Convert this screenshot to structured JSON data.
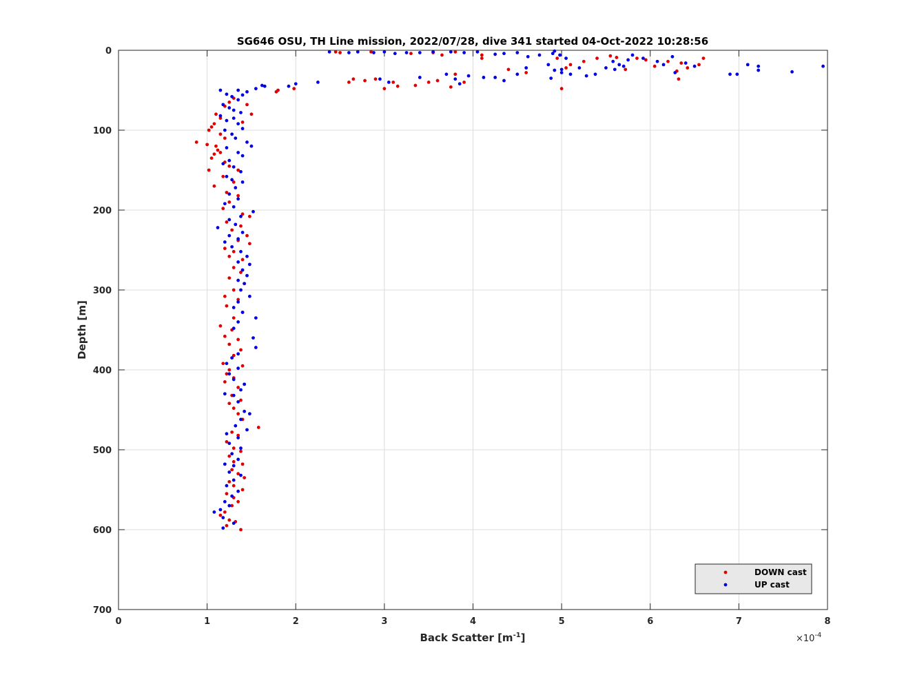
{
  "chart_data": {
    "type": "scatter",
    "title": "SG646 OSU, TH Line mission, 2022/07/28, dive 341 started 04-Oct-2022 10:28:56",
    "xlabel_main": "Back Scatter [m",
    "xlabel_sup": "-1",
    "xlabel_end": "]",
    "ylabel": "Depth [m]",
    "x_multiplier_base": "×10",
    "x_multiplier_exp": "-4",
    "xlim": [
      0,
      8
    ],
    "ylim": [
      0,
      700
    ],
    "y_reversed": true,
    "x_ticks": [
      "0",
      "1",
      "2",
      "3",
      "4",
      "5",
      "6",
      "7",
      "8"
    ],
    "y_ticks": [
      "0",
      "100",
      "200",
      "300",
      "400",
      "500",
      "600",
      "700"
    ],
    "grid": true,
    "legend_position": "bottom-right",
    "series": [
      {
        "name": "DOWN cast",
        "color": "#e00000",
        "points": [
          [
            2.45,
            2
          ],
          [
            2.5,
            3
          ],
          [
            2.85,
            2
          ],
          [
            3.3,
            4
          ],
          [
            3.55,
            3
          ],
          [
            3.65,
            6
          ],
          [
            3.8,
            2
          ],
          [
            4.1,
            6
          ],
          [
            4.1,
            10
          ],
          [
            4.4,
            24
          ],
          [
            4.6,
            28
          ],
          [
            4.95,
            10
          ],
          [
            5.05,
            22
          ],
          [
            5.1,
            18
          ],
          [
            5.25,
            14
          ],
          [
            5.4,
            10
          ],
          [
            5.55,
            7
          ],
          [
            5.62,
            9
          ],
          [
            5.72,
            24
          ],
          [
            5.85,
            10
          ],
          [
            5.95,
            12
          ],
          [
            6.05,
            20
          ],
          [
            6.2,
            14
          ],
          [
            6.3,
            26
          ],
          [
            6.35,
            16
          ],
          [
            6.42,
            22
          ],
          [
            6.55,
            18
          ],
          [
            6.6,
            10
          ],
          [
            6.32,
            36
          ],
          [
            5.0,
            48
          ],
          [
            2.6,
            40
          ],
          [
            2.65,
            36
          ],
          [
            2.78,
            38
          ],
          [
            2.9,
            36
          ],
          [
            3.0,
            48
          ],
          [
            3.1,
            40
          ],
          [
            3.15,
            45
          ],
          [
            3.35,
            44
          ],
          [
            3.5,
            40
          ],
          [
            3.6,
            38
          ],
          [
            3.75,
            46
          ],
          [
            3.8,
            30
          ],
          [
            3.9,
            40
          ],
          [
            1.8,
            50
          ],
          [
            1.98,
            48
          ],
          [
            1.78,
            52
          ],
          [
            1.3,
            60
          ],
          [
            1.25,
            65
          ],
          [
            1.2,
            70
          ],
          [
            1.45,
            68
          ],
          [
            1.5,
            80
          ],
          [
            1.1,
            80
          ],
          [
            1.15,
            85
          ],
          [
            1.4,
            90
          ],
          [
            1.08,
            92
          ],
          [
            1.05,
            96
          ],
          [
            1.02,
            100
          ],
          [
            1.15,
            105
          ],
          [
            1.2,
            110
          ],
          [
            0.88,
            115
          ],
          [
            1.0,
            118
          ],
          [
            1.1,
            120
          ],
          [
            1.12,
            125
          ],
          [
            1.08,
            130
          ],
          [
            1.15,
            128
          ],
          [
            1.05,
            135
          ],
          [
            1.2,
            140
          ],
          [
            1.25,
            145
          ],
          [
            1.35,
            150
          ],
          [
            1.02,
            150
          ],
          [
            1.18,
            158
          ],
          [
            1.3,
            165
          ],
          [
            1.08,
            170
          ],
          [
            1.22,
            178
          ],
          [
            1.35,
            182
          ],
          [
            1.25,
            190
          ],
          [
            1.18,
            198
          ],
          [
            1.4,
            205
          ],
          [
            1.48,
            208
          ],
          [
            1.22,
            215
          ],
          [
            1.38,
            220
          ],
          [
            1.28,
            225
          ],
          [
            1.45,
            232
          ],
          [
            1.35,
            238
          ],
          [
            1.48,
            242
          ],
          [
            1.2,
            248
          ],
          [
            1.3,
            252
          ],
          [
            1.25,
            258
          ],
          [
            1.4,
            262
          ],
          [
            1.3,
            272
          ],
          [
            1.38,
            278
          ],
          [
            1.25,
            285
          ],
          [
            1.42,
            292
          ],
          [
            1.3,
            300
          ],
          [
            1.2,
            308
          ],
          [
            1.35,
            312
          ],
          [
            1.22,
            320
          ],
          [
            1.4,
            328
          ],
          [
            1.3,
            335
          ],
          [
            1.15,
            345
          ],
          [
            1.28,
            350
          ],
          [
            1.2,
            358
          ],
          [
            1.35,
            362
          ],
          [
            1.25,
            368
          ],
          [
            1.38,
            375
          ],
          [
            1.3,
            382
          ],
          [
            1.18,
            392
          ],
          [
            1.4,
            395
          ],
          [
            1.25,
            400
          ],
          [
            1.22,
            405
          ],
          [
            1.3,
            410
          ],
          [
            1.2,
            415
          ],
          [
            1.35,
            422
          ],
          [
            1.28,
            432
          ],
          [
            1.38,
            438
          ],
          [
            1.25,
            442
          ],
          [
            1.3,
            448
          ],
          [
            1.35,
            455
          ],
          [
            1.4,
            462
          ],
          [
            1.58,
            472
          ],
          [
            1.28,
            478
          ],
          [
            1.35,
            482
          ],
          [
            1.22,
            490
          ],
          [
            1.3,
            498
          ],
          [
            1.38,
            502
          ],
          [
            1.25,
            508
          ],
          [
            1.3,
            515
          ],
          [
            1.4,
            518
          ],
          [
            1.28,
            525
          ],
          [
            1.35,
            530
          ],
          [
            1.42,
            535
          ],
          [
            1.25,
            540
          ],
          [
            1.3,
            545
          ],
          [
            1.4,
            550
          ],
          [
            1.22,
            555
          ],
          [
            1.3,
            560
          ],
          [
            1.35,
            565
          ],
          [
            1.28,
            570
          ],
          [
            1.2,
            578
          ],
          [
            1.15,
            582
          ],
          [
            1.25,
            588
          ],
          [
            1.32,
            590
          ],
          [
            1.22,
            595
          ],
          [
            1.38,
            600
          ]
        ]
      },
      {
        "name": "UP cast",
        "color": "#0000e0",
        "points": [
          [
            2.38,
            2
          ],
          [
            2.6,
            3
          ],
          [
            2.7,
            2
          ],
          [
            2.88,
            3
          ],
          [
            3.0,
            2
          ],
          [
            3.12,
            4
          ],
          [
            3.25,
            3
          ],
          [
            3.4,
            3
          ],
          [
            3.55,
            2
          ],
          [
            3.75,
            2
          ],
          [
            3.9,
            3
          ],
          [
            4.05,
            2
          ],
          [
            4.25,
            5
          ],
          [
            4.35,
            4
          ],
          [
            4.5,
            3
          ],
          [
            4.62,
            8
          ],
          [
            4.75,
            6
          ],
          [
            4.9,
            4
          ],
          [
            4.92,
            1
          ],
          [
            4.98,
            6
          ],
          [
            5.05,
            10
          ],
          [
            4.85,
            18
          ],
          [
            4.92,
            25
          ],
          [
            5.0,
            28
          ],
          [
            5.1,
            30
          ],
          [
            5.2,
            22
          ],
          [
            5.28,
            32
          ],
          [
            5.38,
            30
          ],
          [
            5.5,
            22
          ],
          [
            5.58,
            14
          ],
          [
            5.65,
            18
          ],
          [
            5.75,
            12
          ],
          [
            5.8,
            6
          ],
          [
            5.92,
            10
          ],
          [
            6.08,
            14
          ],
          [
            6.15,
            18
          ],
          [
            6.25,
            8
          ],
          [
            6.4,
            16
          ],
          [
            6.5,
            20
          ],
          [
            6.9,
            30
          ],
          [
            6.98,
            30
          ],
          [
            7.1,
            18
          ],
          [
            7.22,
            20
          ],
          [
            7.22,
            25
          ],
          [
            7.6,
            27
          ],
          [
            7.95,
            20
          ],
          [
            4.5,
            30
          ],
          [
            4.6,
            22
          ],
          [
            4.88,
            35
          ],
          [
            5.0,
            24
          ],
          [
            5.6,
            24
          ],
          [
            5.7,
            20
          ],
          [
            6.28,
            28
          ],
          [
            2.25,
            40
          ],
          [
            2.0,
            42
          ],
          [
            2.95,
            36
          ],
          [
            3.05,
            40
          ],
          [
            3.4,
            34
          ],
          [
            3.7,
            30
          ],
          [
            3.8,
            36
          ],
          [
            3.85,
            42
          ],
          [
            3.95,
            32
          ],
          [
            4.12,
            34
          ],
          [
            4.25,
            34
          ],
          [
            4.35,
            38
          ],
          [
            1.92,
            45
          ],
          [
            1.65,
            45
          ],
          [
            1.55,
            48
          ],
          [
            1.62,
            44
          ],
          [
            1.45,
            52
          ],
          [
            1.35,
            50
          ],
          [
            1.15,
            50
          ],
          [
            1.22,
            55
          ],
          [
            1.28,
            58
          ],
          [
            1.35,
            62
          ],
          [
            1.4,
            56
          ],
          [
            1.18,
            68
          ],
          [
            1.25,
            72
          ],
          [
            1.3,
            75
          ],
          [
            1.38,
            78
          ],
          [
            1.15,
            82
          ],
          [
            1.22,
            88
          ],
          [
            1.3,
            85
          ],
          [
            1.35,
            92
          ],
          [
            1.4,
            98
          ],
          [
            1.2,
            100
          ],
          [
            1.28,
            105
          ],
          [
            1.32,
            110
          ],
          [
            1.45,
            115
          ],
          [
            1.5,
            120
          ],
          [
            1.22,
            122
          ],
          [
            1.35,
            128
          ],
          [
            1.4,
            132
          ],
          [
            1.25,
            138
          ],
          [
            1.18,
            142
          ],
          [
            1.3,
            146
          ],
          [
            1.38,
            152
          ],
          [
            1.22,
            158
          ],
          [
            1.28,
            162
          ],
          [
            1.4,
            165
          ],
          [
            1.32,
            172
          ],
          [
            1.25,
            180
          ],
          [
            1.35,
            186
          ],
          [
            1.2,
            192
          ],
          [
            1.3,
            196
          ],
          [
            1.52,
            202
          ],
          [
            1.38,
            208
          ],
          [
            1.25,
            212
          ],
          [
            1.32,
            218
          ],
          [
            1.12,
            222
          ],
          [
            1.4,
            228
          ],
          [
            1.25,
            232
          ],
          [
            1.35,
            236
          ],
          [
            1.2,
            240
          ],
          [
            1.28,
            246
          ],
          [
            1.38,
            252
          ],
          [
            1.45,
            258
          ],
          [
            1.35,
            265
          ],
          [
            1.48,
            268
          ],
          [
            1.4,
            275
          ],
          [
            1.45,
            282
          ],
          [
            1.35,
            288
          ],
          [
            1.42,
            292
          ],
          [
            1.38,
            300
          ],
          [
            1.48,
            308
          ],
          [
            1.35,
            315
          ],
          [
            1.3,
            322
          ],
          [
            1.4,
            328
          ],
          [
            1.55,
            335
          ],
          [
            1.35,
            340
          ],
          [
            1.3,
            348
          ],
          [
            1.52,
            360
          ],
          [
            1.55,
            372
          ],
          [
            1.35,
            380
          ],
          [
            1.28,
            385
          ],
          [
            1.22,
            392
          ],
          [
            1.35,
            398
          ],
          [
            1.25,
            405
          ],
          [
            1.3,
            412
          ],
          [
            1.42,
            418
          ],
          [
            1.38,
            425
          ],
          [
            1.3,
            432
          ],
          [
            1.2,
            430
          ],
          [
            1.35,
            440
          ],
          [
            1.42,
            452
          ],
          [
            1.48,
            455
          ],
          [
            1.38,
            462
          ],
          [
            1.32,
            470
          ],
          [
            1.45,
            475
          ],
          [
            1.22,
            480
          ],
          [
            1.35,
            485
          ],
          [
            1.25,
            492
          ],
          [
            1.38,
            498
          ],
          [
            1.28,
            505
          ],
          [
            1.35,
            512
          ],
          [
            1.2,
            518
          ],
          [
            1.3,
            520
          ],
          [
            1.25,
            528
          ],
          [
            1.38,
            532
          ],
          [
            1.3,
            538
          ],
          [
            1.22,
            545
          ],
          [
            1.35,
            552
          ],
          [
            1.28,
            558
          ],
          [
            1.2,
            565
          ],
          [
            1.25,
            570
          ],
          [
            1.15,
            575
          ],
          [
            1.08,
            578
          ],
          [
            1.18,
            585
          ],
          [
            1.3,
            592
          ],
          [
            1.18,
            598
          ]
        ]
      }
    ]
  }
}
